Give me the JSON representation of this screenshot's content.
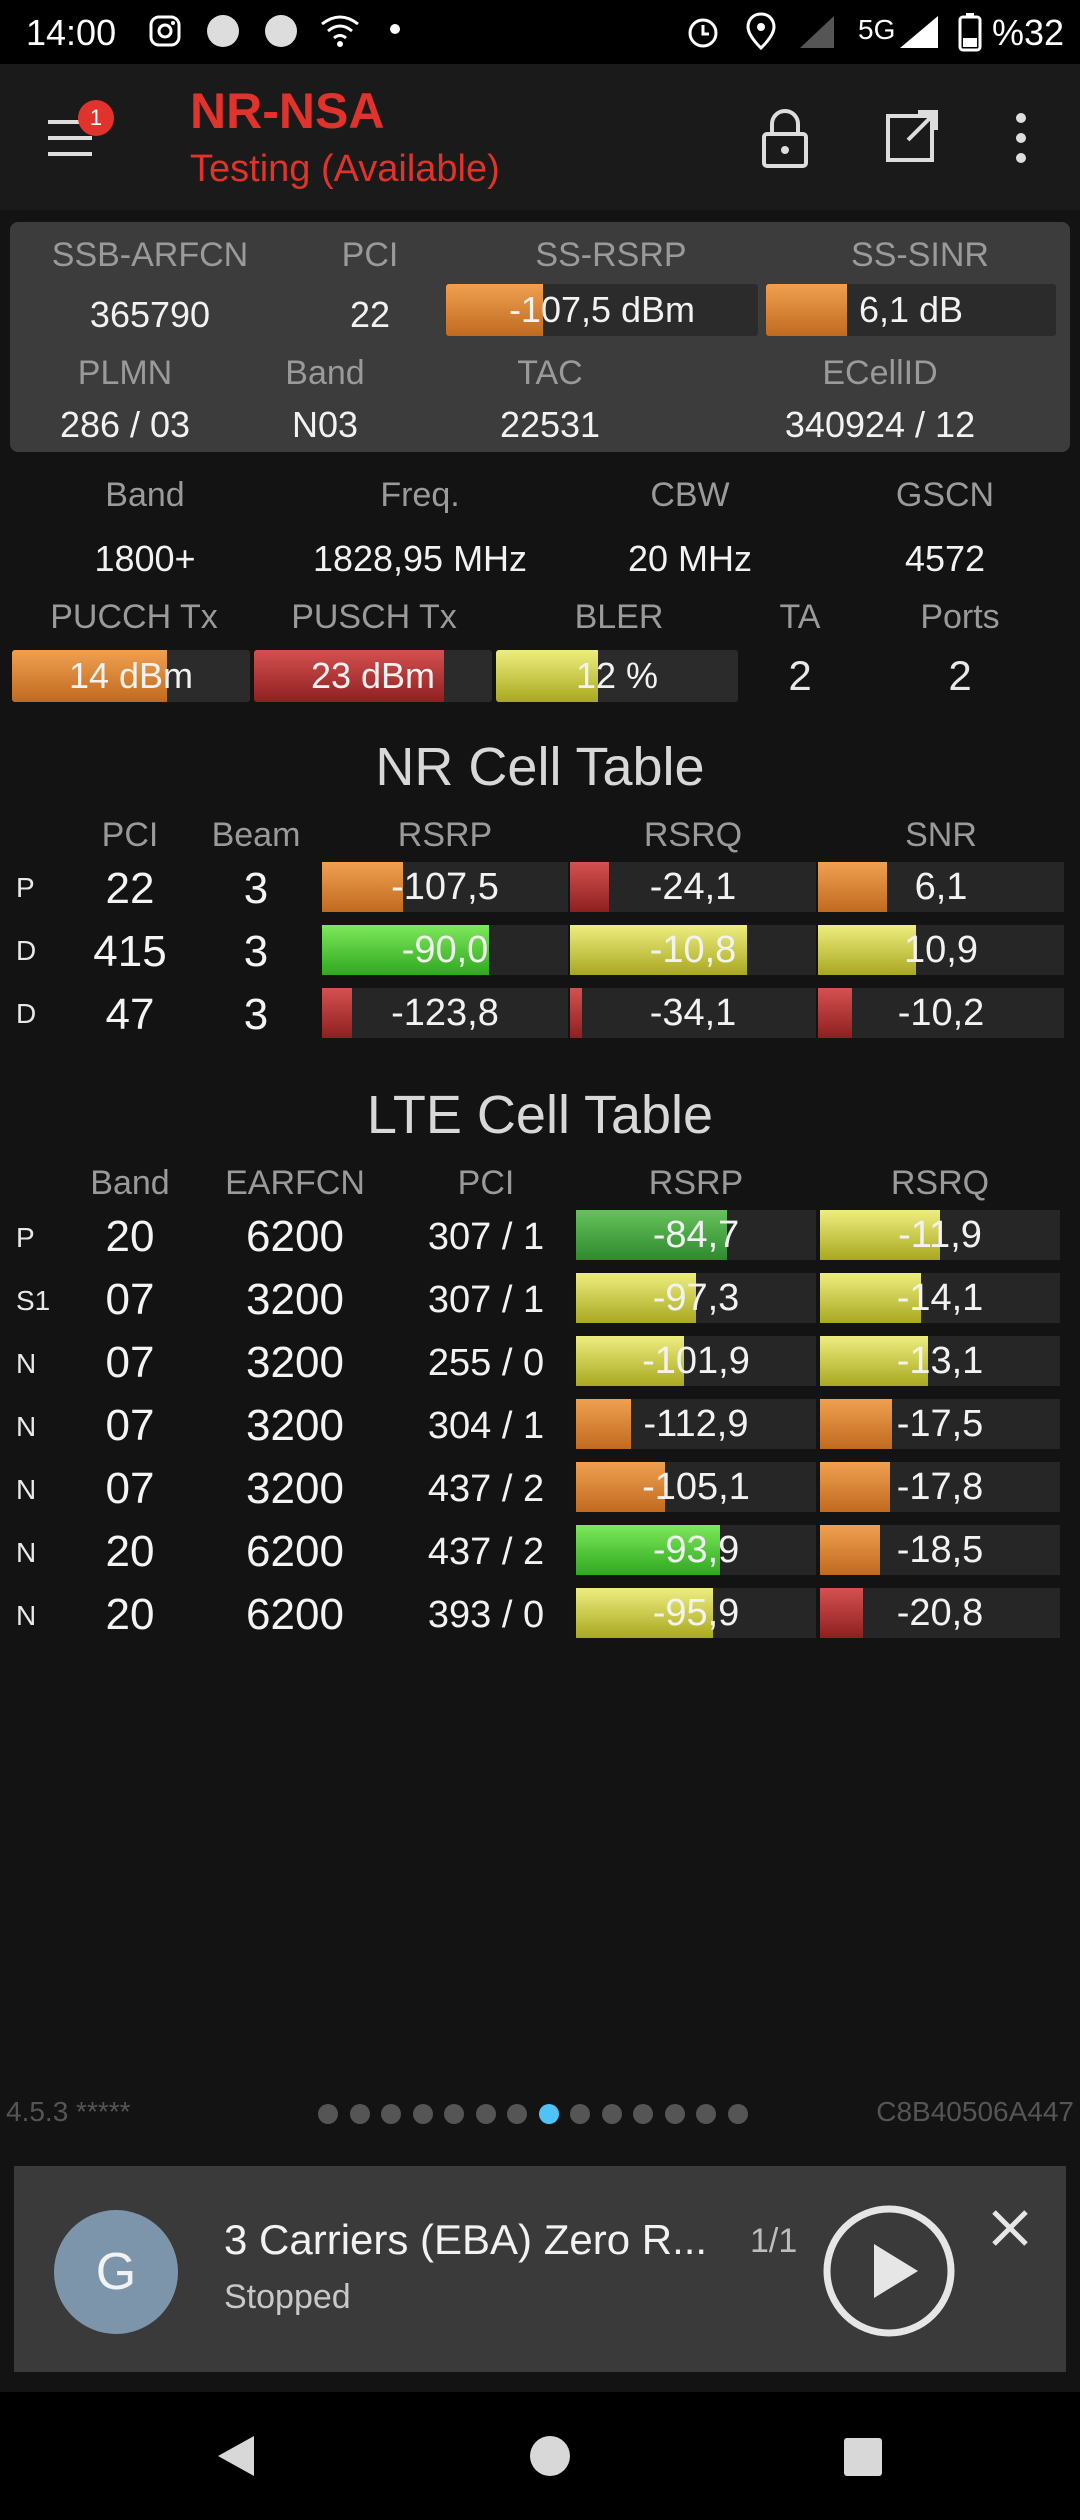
{
  "status_bar": {
    "time": "14:00",
    "network": "5G",
    "battery": "%32"
  },
  "app": {
    "notification_count": "1",
    "title": "NR-NSA",
    "subtitle": "Testing (Available)"
  },
  "serving": {
    "headers": [
      "SSB-ARFCN",
      "PCI",
      "SS-RSRP",
      "SS-SINR"
    ],
    "arfcn": "365790",
    "pci": "22",
    "rsrp": {
      "text": "-107,5 dBm",
      "level": 0.31,
      "color": "orange"
    },
    "sinr": {
      "text": "6,1 dB",
      "level": 0.28,
      "color": "orange"
    },
    "headers2": [
      "PLMN",
      "Band",
      "TAC",
      "ECellID"
    ],
    "plmn": "286 / 03",
    "band": "N03",
    "tac": "22531",
    "ecellid": "340924 / 12"
  },
  "nr_info": {
    "headers": [
      "Band",
      "Freq.",
      "CBW",
      "GSCN"
    ],
    "band": "1800+",
    "freq": "1828,95 MHz",
    "cbw": "20 MHz",
    "gscn": "4572",
    "headers2": [
      "PUCCH Tx",
      "PUSCH Tx",
      "BLER",
      "TA",
      "Ports"
    ],
    "pucch": {
      "text": "14 dBm",
      "level": 0.65,
      "color": "orange"
    },
    "pusch": {
      "text": "23 dBm",
      "level": 0.8,
      "color": "red"
    },
    "bler": {
      "text": "12 %",
      "level": 0.42,
      "color": "yellow"
    },
    "ta": "2",
    "ports": "2"
  },
  "nr_table": {
    "title": "NR Cell Table",
    "columns": [
      "PCI",
      "Beam",
      "RSRP",
      "RSRQ",
      "SNR"
    ],
    "rows": [
      {
        "type": "P",
        "pci": "22",
        "beam": "3",
        "rsrp": {
          "text": "-107,5",
          "level": 0.33,
          "color": "orange"
        },
        "rsrq": {
          "text": "-24,1",
          "level": 0.16,
          "color": "red"
        },
        "snr": {
          "text": "6,1",
          "level": 0.28,
          "color": "orange"
        }
      },
      {
        "type": "D",
        "pci": "415",
        "beam": "3",
        "rsrp": {
          "text": "-90,0",
          "level": 0.68,
          "color": "green"
        },
        "rsrq": {
          "text": "-10,8",
          "level": 0.72,
          "color": "yellow"
        },
        "snr": {
          "text": "10,9",
          "level": 0.4,
          "color": "yellow"
        }
      },
      {
        "type": "D",
        "pci": "47",
        "beam": "3",
        "rsrp": {
          "text": "-123,8",
          "level": 0.12,
          "color": "red"
        },
        "rsrq": {
          "text": "-34,1",
          "level": 0.05,
          "color": "red"
        },
        "snr": {
          "text": "-10,2",
          "level": 0.14,
          "color": "red"
        }
      }
    ]
  },
  "lte_table": {
    "title": "LTE Cell Table",
    "columns": [
      "Band",
      "EARFCN",
      "PCI",
      "RSRP",
      "RSRQ"
    ],
    "rows": [
      {
        "type": "P",
        "band": "20",
        "earfcn": "6200",
        "pci": "307 / 1",
        "rsrp": {
          "text": "-84,7",
          "level": 0.63,
          "color": "dgreen"
        },
        "rsrq": {
          "text": "-11,9",
          "level": 0.5,
          "color": "yellow"
        }
      },
      {
        "type": "S1",
        "band": "07",
        "earfcn": "3200",
        "pci": "307 / 1",
        "rsrp": {
          "text": "-97,3",
          "level": 0.5,
          "color": "yellow"
        },
        "rsrq": {
          "text": "-14,1",
          "level": 0.42,
          "color": "yellow"
        }
      },
      {
        "type": "N",
        "band": "07",
        "earfcn": "3200",
        "pci": "255 / 0",
        "rsrp": {
          "text": "-101,9",
          "level": 0.45,
          "color": "yellow"
        },
        "rsrq": {
          "text": "-13,1",
          "level": 0.45,
          "color": "yellow"
        }
      },
      {
        "type": "N",
        "band": "07",
        "earfcn": "3200",
        "pci": "304 / 1",
        "rsrp": {
          "text": "-112,9",
          "level": 0.23,
          "color": "orange"
        },
        "rsrq": {
          "text": "-17,5",
          "level": 0.3,
          "color": "orange"
        }
      },
      {
        "type": "N",
        "band": "07",
        "earfcn": "3200",
        "pci": "437 / 2",
        "rsrp": {
          "text": "-105,1",
          "level": 0.37,
          "color": "orange"
        },
        "rsrq": {
          "text": "-17,8",
          "level": 0.29,
          "color": "orange"
        }
      },
      {
        "type": "N",
        "band": "20",
        "earfcn": "6200",
        "pci": "437 / 2",
        "rsrp": {
          "text": "-93,9",
          "level": 0.6,
          "color": "green"
        },
        "rsrq": {
          "text": "-18,5",
          "level": 0.25,
          "color": "orange"
        }
      },
      {
        "type": "N",
        "band": "20",
        "earfcn": "6200",
        "pci": "393 / 0",
        "rsrp": {
          "text": "-95,9",
          "level": 0.57,
          "color": "yellow"
        },
        "rsrq": {
          "text": "-20,8",
          "level": 0.18,
          "color": "red"
        }
      }
    ]
  },
  "footer": {
    "version": "4.5.3 *****",
    "device_id": "C8B40506A447",
    "page_count": 14,
    "active_page": 7
  },
  "player": {
    "avatar_letter": "G",
    "title": "3 Carriers (EBA) Zero R...",
    "count": "1/1",
    "status": "Stopped"
  }
}
